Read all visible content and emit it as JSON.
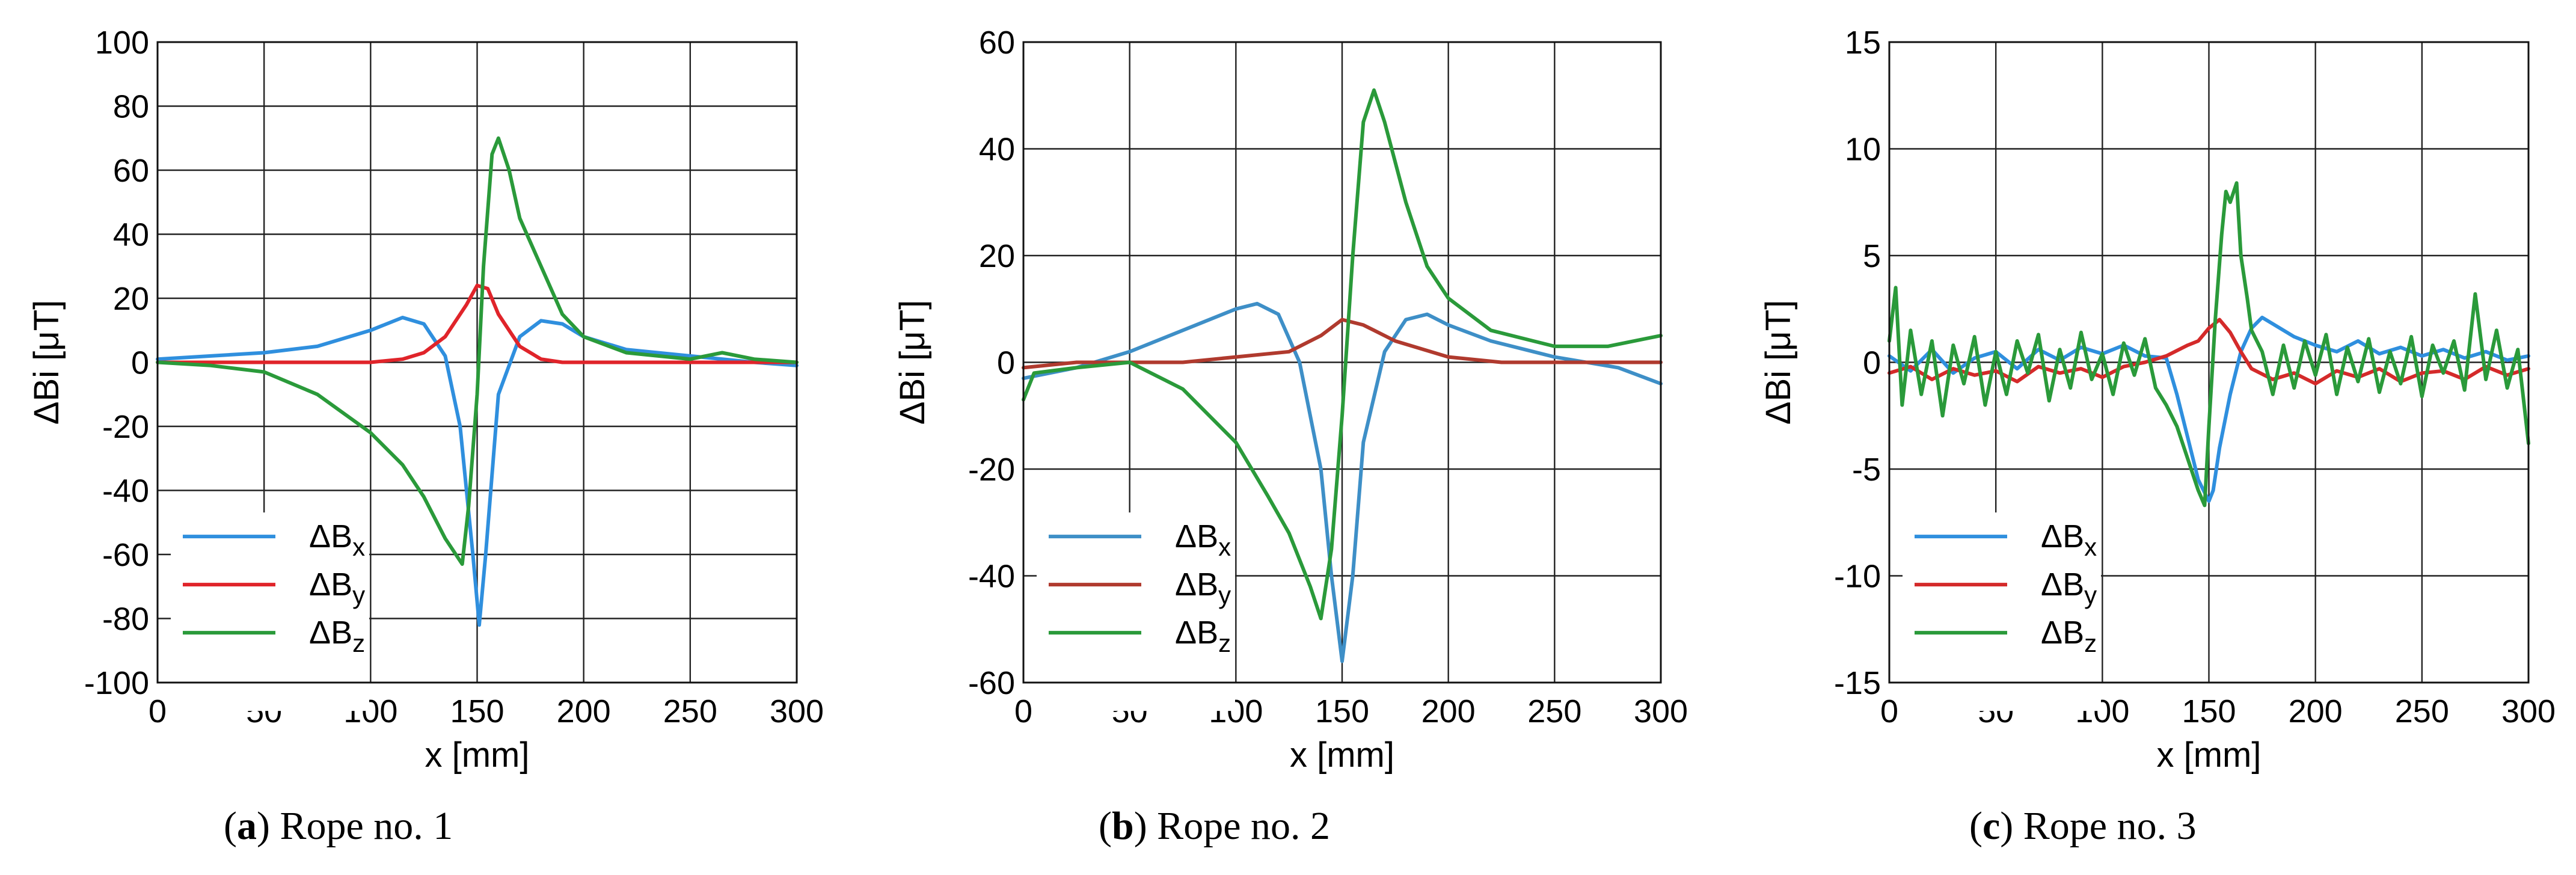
{
  "chart_data": [
    {
      "type": "line",
      "panel": "a",
      "caption": {
        "letter": "a",
        "text": "Rope no. 1"
      },
      "xlabel": "x [mm]",
      "ylabel": "ΔBi [μT]",
      "xlim": [
        0,
        300
      ],
      "ylim": [
        -100,
        100
      ],
      "xticks": [
        0,
        50,
        100,
        150,
        200,
        250,
        300
      ],
      "yticks": [
        -100,
        -80,
        -60,
        -40,
        -20,
        0,
        20,
        40,
        60,
        80,
        100
      ],
      "grid": true,
      "legend_position": "bottom-left",
      "series": [
        {
          "name": "ΔBx",
          "base": "ΔB",
          "sub": "x",
          "color": "#2f8fde",
          "x": [
            0,
            25,
            50,
            75,
            100,
            115,
            125,
            135,
            142,
            148,
            151,
            154,
            160,
            170,
            180,
            190,
            200,
            220,
            250,
            280,
            300
          ],
          "y": [
            1,
            2,
            3,
            5,
            10,
            14,
            12,
            2,
            -20,
            -60,
            -82,
            -60,
            -10,
            8,
            13,
            12,
            8,
            4,
            2,
            0,
            -1
          ]
        },
        {
          "name": "ΔBy",
          "base": "ΔB",
          "sub": "y",
          "color": "#e0242a",
          "x": [
            0,
            25,
            50,
            75,
            100,
            115,
            125,
            135,
            145,
            150,
            155,
            160,
            170,
            180,
            190,
            200,
            220,
            250,
            300
          ],
          "y": [
            0,
            0,
            0,
            0,
            0,
            1,
            3,
            8,
            18,
            24,
            23,
            15,
            5,
            1,
            0,
            0,
            0,
            0,
            0
          ]
        },
        {
          "name": "ΔBz",
          "base": "ΔB",
          "sub": "z",
          "color": "#2a9a3a",
          "x": [
            0,
            25,
            50,
            75,
            100,
            115,
            125,
            135,
            140,
            143,
            146,
            150,
            153,
            157,
            160,
            165,
            170,
            180,
            190,
            200,
            220,
            250,
            265,
            280,
            300
          ],
          "y": [
            0,
            -1,
            -3,
            -10,
            -22,
            -32,
            -42,
            -55,
            -60,
            -63,
            -45,
            -10,
            30,
            65,
            70,
            60,
            45,
            30,
            15,
            8,
            3,
            1,
            3,
            1,
            0
          ]
        }
      ]
    },
    {
      "type": "line",
      "panel": "b",
      "caption": {
        "letter": "b",
        "text": "Rope no. 2"
      },
      "xlabel": "x [mm]",
      "ylabel": "ΔBi [μT]",
      "xlim": [
        0,
        300
      ],
      "ylim": [
        -60,
        60
      ],
      "xticks": [
        0,
        50,
        100,
        150,
        200,
        250,
        300
      ],
      "yticks": [
        -60,
        -40,
        -20,
        0,
        20,
        40,
        60
      ],
      "grid": true,
      "legend_position": "bottom-left",
      "series": [
        {
          "name": "ΔBx",
          "base": "ΔB",
          "sub": "x",
          "color": "#3e8fc7",
          "x": [
            0,
            25,
            50,
            75,
            100,
            110,
            120,
            130,
            140,
            145,
            150,
            155,
            160,
            170,
            180,
            190,
            200,
            220,
            250,
            280,
            300
          ],
          "y": [
            -3,
            -1,
            2,
            6,
            10,
            11,
            9,
            0,
            -20,
            -40,
            -56,
            -40,
            -15,
            2,
            8,
            9,
            7,
            4,
            1,
            -1,
            -4
          ]
        },
        {
          "name": "ΔBy",
          "base": "ΔB",
          "sub": "y",
          "color": "#b03a2e",
          "x": [
            0,
            25,
            50,
            75,
            100,
            125,
            140,
            150,
            160,
            175,
            200,
            225,
            250,
            275,
            300
          ],
          "y": [
            -1,
            0,
            0,
            0,
            1,
            2,
            5,
            8,
            7,
            4,
            1,
            0,
            0,
            0,
            0
          ]
        },
        {
          "name": "ΔBz",
          "base": "ΔB",
          "sub": "z",
          "color": "#2a9a3a",
          "x": [
            0,
            5,
            25,
            50,
            75,
            100,
            115,
            125,
            135,
            140,
            145,
            150,
            155,
            160,
            165,
            170,
            180,
            190,
            200,
            220,
            250,
            275,
            300
          ],
          "y": [
            -7,
            -2,
            -1,
            0,
            -5,
            -15,
            -25,
            -32,
            -42,
            -48,
            -35,
            -10,
            20,
            45,
            51,
            45,
            30,
            18,
            12,
            6,
            3,
            3,
            5
          ]
        }
      ]
    },
    {
      "type": "line",
      "panel": "c",
      "caption": {
        "letter": "c",
        "text": "Rope no. 3"
      },
      "xlabel": "x [mm]",
      "ylabel": "ΔBi [μT]",
      "xlim": [
        0,
        300
      ],
      "ylim": [
        -15,
        15
      ],
      "xticks": [
        0,
        50,
        100,
        150,
        200,
        250,
        300
      ],
      "yticks": [
        -15,
        -10,
        -5,
        0,
        5,
        10,
        15
      ],
      "grid": true,
      "legend_position": "bottom-left",
      "series": [
        {
          "name": "ΔBx",
          "base": "ΔB",
          "sub": "x",
          "color": "#2f8fde",
          "x": [
            0,
            10,
            20,
            30,
            40,
            50,
            60,
            70,
            80,
            90,
            100,
            110,
            120,
            130,
            135,
            140,
            145,
            150,
            152,
            155,
            160,
            165,
            170,
            175,
            180,
            190,
            200,
            210,
            220,
            230,
            240,
            250,
            260,
            270,
            280,
            290,
            300
          ],
          "y": [
            0.3,
            -0.4,
            0.6,
            -0.5,
            0.2,
            0.5,
            -0.3,
            0.6,
            0.1,
            0.7,
            0.4,
            0.8,
            0.3,
            0.2,
            -1.5,
            -3.5,
            -5.5,
            -6.5,
            -6,
            -4,
            -1.5,
            0.5,
            1.6,
            2.1,
            1.8,
            1.2,
            0.8,
            0.5,
            1,
            0.4,
            0.7,
            0.3,
            0.6,
            0.2,
            0.5,
            0.1,
            0.3
          ]
        },
        {
          "name": "ΔBy",
          "base": "ΔB",
          "sub": "y",
          "color": "#d42a2a",
          "x": [
            0,
            10,
            20,
            30,
            40,
            50,
            60,
            70,
            80,
            90,
            100,
            110,
            120,
            130,
            140,
            145,
            150,
            155,
            160,
            165,
            170,
            180,
            190,
            200,
            210,
            220,
            230,
            240,
            250,
            260,
            270,
            280,
            290,
            300
          ],
          "y": [
            -0.5,
            -0.2,
            -0.8,
            -0.3,
            -0.6,
            -0.4,
            -0.9,
            -0.2,
            -0.5,
            -0.3,
            -0.7,
            -0.2,
            0,
            0.3,
            0.8,
            1,
            1.6,
            2,
            1.4,
            0.5,
            -0.3,
            -0.8,
            -0.5,
            -1,
            -0.4,
            -0.7,
            -0.3,
            -0.9,
            -0.5,
            -0.4,
            -0.8,
            -0.2,
            -0.6,
            -0.3
          ]
        },
        {
          "name": "ΔBz",
          "base": "ΔB",
          "sub": "z",
          "color": "#2a9a3a",
          "x": [
            0,
            3,
            6,
            10,
            15,
            20,
            25,
            30,
            35,
            40,
            45,
            50,
            55,
            60,
            65,
            70,
            75,
            80,
            85,
            90,
            95,
            100,
            105,
            110,
            115,
            120,
            125,
            130,
            135,
            140,
            145,
            148,
            150,
            153,
            156,
            158,
            160,
            163,
            165,
            168,
            170,
            175,
            180,
            185,
            190,
            195,
            200,
            205,
            210,
            215,
            220,
            225,
            230,
            235,
            240,
            245,
            250,
            255,
            260,
            265,
            270,
            275,
            280,
            285,
            290,
            295,
            300
          ],
          "y": [
            1,
            3.5,
            -2,
            1.5,
            -1.5,
            1,
            -2.5,
            0.8,
            -1,
            1.2,
            -2,
            0.5,
            -1.5,
            1,
            -0.5,
            1.3,
            -1.8,
            0.6,
            -1.2,
            1.4,
            -0.8,
            0.4,
            -1.5,
            0.9,
            -0.6,
            1.1,
            -1.2,
            -2,
            -3,
            -4.5,
            -6,
            -6.7,
            -3,
            2,
            6,
            8,
            7.5,
            8.4,
            5,
            3,
            1.5,
            0.5,
            -1.5,
            0.8,
            -1.2,
            1,
            -0.6,
            1.3,
            -1.5,
            0.7,
            -0.9,
            1.1,
            -1.4,
            0.5,
            -1,
            1.2,
            -1.6,
            0.8,
            -0.5,
            1,
            -1.3,
            3.2,
            -0.8,
            1.5,
            -1.2,
            0.6,
            -3.8
          ]
        }
      ]
    }
  ]
}
